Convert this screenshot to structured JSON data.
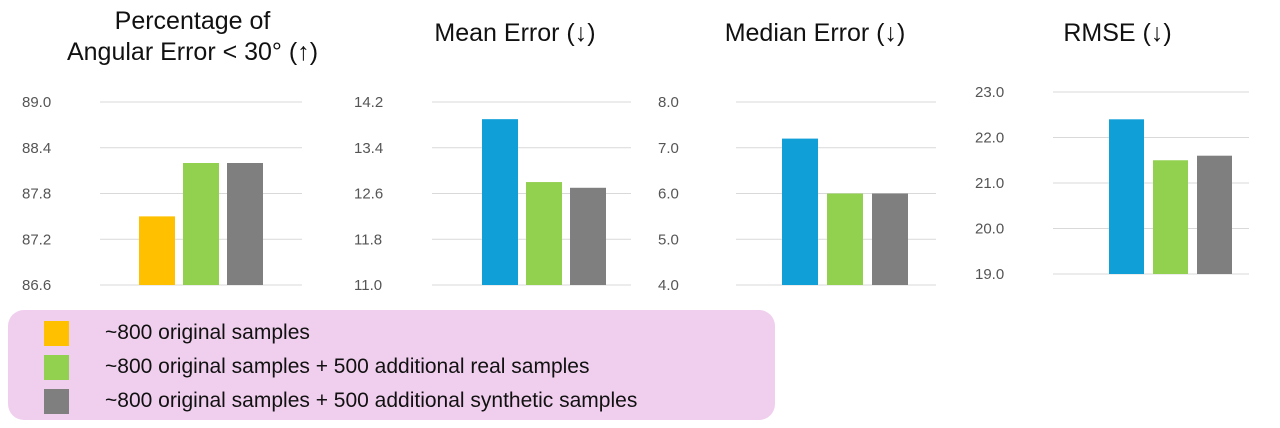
{
  "colors": {
    "original": "#ffc000",
    "real": "#92d050",
    "synthetic": "#7f7f7f",
    "blue": "#119fd8",
    "grid": "#d9d9d9",
    "legend_bg": "#f0cfee"
  },
  "chart_data": [
    {
      "type": "bar",
      "title": "Percentage of\nAngular Error < 30° (↑)",
      "categories": [
        "~800 original samples",
        "~800 original samples + 500 additional real samples",
        "~800 original samples + 500 additional synthetic samples"
      ],
      "values": [
        87.5,
        88.2,
        88.2
      ],
      "bar_colors": [
        "#ffc000",
        "#92d050",
        "#7f7f7f"
      ],
      "ylim": [
        86.6,
        89.0
      ],
      "yticks": [
        "89.0",
        "88.4",
        "87.8",
        "87.2",
        "86.6"
      ],
      "grid": true
    },
    {
      "type": "bar",
      "title": "Mean Error (↓)",
      "categories": [
        "~800 original samples",
        "~800 original samples + 500 additional real samples",
        "~800 original samples + 500 additional synthetic samples"
      ],
      "values": [
        13.9,
        12.8,
        12.7
      ],
      "bar_colors": [
        "#119fd8",
        "#92d050",
        "#7f7f7f"
      ],
      "ylim": [
        11.0,
        14.2
      ],
      "yticks": [
        "14.2",
        "13.4",
        "12.6",
        "11.8",
        "11.0"
      ],
      "grid": true
    },
    {
      "type": "bar",
      "title": "Median Error (↓)",
      "categories": [
        "~800 original samples",
        "~800 original samples + 500 additional real samples",
        "~800 original samples + 500 additional synthetic samples"
      ],
      "values": [
        7.2,
        6.0,
        6.0
      ],
      "bar_colors": [
        "#119fd8",
        "#92d050",
        "#7f7f7f"
      ],
      "ylim": [
        4.0,
        8.0
      ],
      "yticks": [
        "8.0",
        "7.0",
        "6.0",
        "5.0",
        "4.0"
      ],
      "grid": true
    },
    {
      "type": "bar",
      "title": "RMSE (↓)",
      "categories": [
        "~800 original samples",
        "~800 original samples + 500 additional real samples",
        "~800 original samples + 500 additional synthetic samples"
      ],
      "values": [
        22.4,
        21.5,
        21.6
      ],
      "bar_colors": [
        "#119fd8",
        "#92d050",
        "#7f7f7f"
      ],
      "ylim": [
        19.0,
        23.0
      ],
      "yticks": [
        "23.0",
        "22.0",
        "21.0",
        "20.0",
        "19.0"
      ],
      "grid": true
    }
  ],
  "legend": {
    "items": [
      {
        "label": "~800 original samples",
        "color": "#ffc000"
      },
      {
        "label": "~800 original samples + 500 additional real samples",
        "color": "#92d050"
      },
      {
        "label": "~800 original samples + 500 additional synthetic samples",
        "color": "#7f7f7f"
      }
    ]
  }
}
